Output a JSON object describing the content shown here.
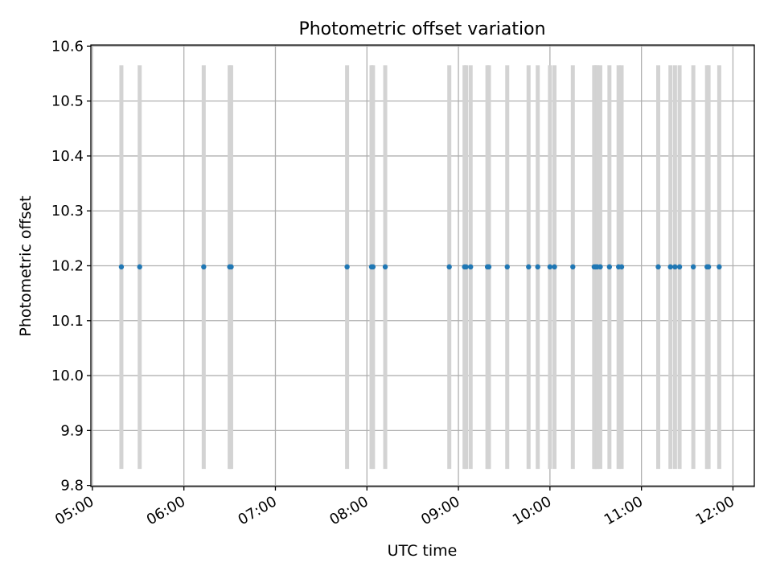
{
  "chart_data": {
    "type": "scatter",
    "title": "Photometric offset variation",
    "xlabel": "UTC time",
    "ylabel": "Photometric offset",
    "x_axis_kind": "time-of-day",
    "xlim": [
      "04:59",
      "12:14"
    ],
    "ylim": [
      9.798,
      10.602
    ],
    "grid": true,
    "x_ticks": [
      "05:00",
      "06:00",
      "07:00",
      "08:00",
      "09:00",
      "10:00",
      "11:00",
      "12:00"
    ],
    "y_ticks": [
      "9.8",
      "9.9",
      "10.0",
      "10.1",
      "10.2",
      "10.3",
      "10.4",
      "10.5",
      "10.6"
    ],
    "band_range": [
      9.83,
      10.565
    ],
    "colors": {
      "points": "#1f77b4",
      "bands": "#d3d3d3",
      "grid": "#b0b0b0"
    },
    "series": [
      {
        "times": [
          "05:19",
          "05:31",
          "06:13",
          "06:30",
          "06:31",
          "07:47",
          "08:03",
          "08:04",
          "08:12",
          "08:54",
          "09:04",
          "09:05",
          "09:08",
          "09:19",
          "09:20",
          "09:32",
          "09:46",
          "09:52",
          "10:00",
          "10:03",
          "10:15",
          "10:29",
          "10:30",
          "10:31",
          "10:33",
          "10:39",
          "10:45",
          "10:47",
          "11:11",
          "11:19",
          "11:22",
          "11:25",
          "11:34",
          "11:43",
          "11:44",
          "11:51"
        ],
        "values": [
          10.198,
          10.198,
          10.198,
          10.198,
          10.198,
          10.198,
          10.198,
          10.198,
          10.198,
          10.198,
          10.198,
          10.198,
          10.198,
          10.198,
          10.198,
          10.198,
          10.198,
          10.198,
          10.198,
          10.198,
          10.198,
          10.198,
          10.198,
          10.198,
          10.198,
          10.198,
          10.198,
          10.198,
          10.198,
          10.198,
          10.198,
          10.198,
          10.198,
          10.198,
          10.198,
          10.198
        ]
      }
    ]
  }
}
